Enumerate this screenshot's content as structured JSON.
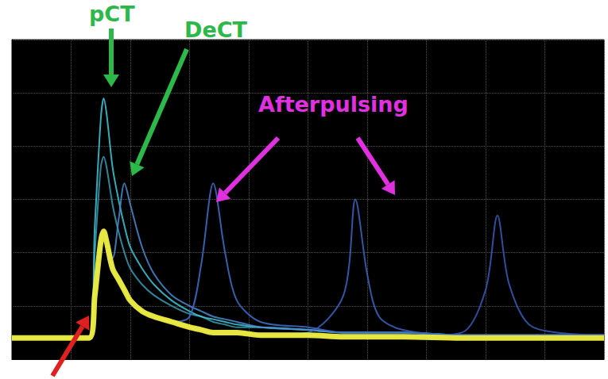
{
  "chart_data": {
    "type": "line",
    "x": [
      0,
      1.3,
      1.4,
      1.5,
      1.55,
      1.6,
      1.7,
      1.8,
      1.9,
      2.0,
      2.2,
      2.4,
      2.7,
      3.0,
      3.2,
      3.4,
      3.6,
      3.8,
      4.2,
      5.0,
      5.6,
      5.8,
      6.0,
      6.2,
      6.6,
      7.6,
      8.0,
      8.2,
      8.4,
      8.8,
      10
    ],
    "series": [
      {
        "color": "#3a9ab0",
        "values": [
          0.4,
          0.4,
          2.0,
          3.6,
          3.8,
          3.6,
          2.9,
          2.4,
          2.0,
          1.7,
          1.4,
          1.2,
          1.0,
          0.85,
          0.8,
          0.7,
          0.65,
          0.6,
          0.6,
          0.55,
          0.5,
          0.5,
          0.5,
          0.5,
          0.5,
          0.45,
          0.45,
          0.45,
          0.45,
          0.45,
          0.45
        ]
      },
      {
        "color": "#40c8d8",
        "values": [
          0.4,
          0.4,
          2.5,
          4.5,
          4.9,
          4.6,
          3.6,
          3.0,
          2.5,
          2.1,
          1.7,
          1.4,
          1.1,
          0.9,
          0.8,
          0.75,
          0.7,
          0.65,
          0.6,
          0.55,
          0.5,
          0.5,
          0.5,
          0.5,
          0.5,
          0.45,
          0.45,
          0.45,
          0.45,
          0.45,
          0.45
        ]
      },
      {
        "color": "#4a8ad0",
        "values": [
          0.4,
          0.4,
          1.2,
          2.2,
          2.4,
          2.2,
          1.9,
          2.6,
          3.3,
          2.9,
          2.1,
          1.6,
          1.2,
          1.0,
          0.9,
          0.8,
          0.75,
          0.7,
          0.6,
          0.55,
          0.5,
          0.5,
          0.5,
          0.5,
          0.5,
          0.45,
          0.45,
          0.45,
          0.45,
          0.45,
          0.45
        ]
      },
      {
        "color": "#4070c8",
        "values": [
          0.4,
          0.4,
          1.2,
          2.2,
          2.4,
          2.2,
          1.7,
          1.5,
          1.3,
          1.1,
          0.9,
          0.8,
          0.7,
          0.8,
          1.8,
          3.3,
          2.0,
          1.1,
          0.7,
          0.6,
          0.5,
          0.5,
          0.5,
          0.5,
          0.5,
          0.45,
          0.45,
          0.45,
          0.45,
          0.45,
          0.45
        ]
      },
      {
        "color": "#3c64c0",
        "values": [
          0.4,
          0.4,
          1.2,
          2.2,
          2.4,
          2.2,
          1.7,
          1.5,
          1.3,
          1.1,
          0.9,
          0.8,
          0.7,
          0.6,
          0.55,
          0.5,
          0.5,
          0.5,
          0.45,
          0.5,
          1.2,
          3.0,
          1.6,
          0.8,
          0.55,
          0.45,
          0.45,
          0.45,
          0.45,
          0.45,
          0.45
        ]
      },
      {
        "color": "#3a5cb8",
        "values": [
          0.4,
          0.4,
          1.2,
          2.2,
          2.4,
          2.2,
          1.7,
          1.5,
          1.3,
          1.1,
          0.9,
          0.8,
          0.7,
          0.6,
          0.55,
          0.5,
          0.5,
          0.5,
          0.45,
          0.45,
          0.42,
          0.42,
          0.42,
          0.42,
          0.42,
          0.5,
          1.3,
          2.7,
          1.4,
          0.6,
          0.45
        ]
      },
      {
        "color": "#f0f040",
        "values": [
          0.4,
          0.4,
          1.2,
          2.2,
          2.4,
          2.2,
          1.7,
          1.5,
          1.3,
          1.1,
          0.9,
          0.8,
          0.7,
          0.6,
          0.55,
          0.5,
          0.5,
          0.5,
          0.45,
          0.45,
          0.42,
          0.42,
          0.42,
          0.42,
          0.42,
          0.4,
          0.4,
          0.4,
          0.4,
          0.4,
          0.4
        ]
      }
    ],
    "xlim": [
      0,
      10
    ],
    "xticks": [
      0,
      1,
      2,
      3,
      4,
      5,
      6,
      7,
      8,
      9,
      10
    ],
    "ylim": [
      0,
      6
    ],
    "yticks": [
      0,
      1,
      2,
      3,
      4,
      5,
      6
    ],
    "grid": true,
    "tick_labels": false,
    "annotations": [
      {
        "text": "pCT",
        "color": "#2db84a"
      },
      {
        "text": "DeCT",
        "color": "#2db84a"
      },
      {
        "text": "Afterpulsing",
        "color": "#e030e0"
      }
    ]
  }
}
